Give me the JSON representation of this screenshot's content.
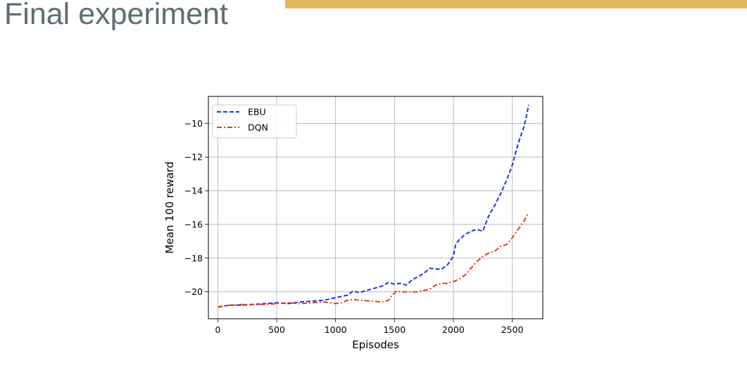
{
  "slide": {
    "title": "Final experiment",
    "accent_color": "#e2b760",
    "title_color": "#5d6d73"
  },
  "chart_data": {
    "type": "line",
    "title": "",
    "xlabel": "Episodes",
    "ylabel": "Mean 100 reward",
    "xlim": [
      -80,
      2760
    ],
    "ylim": [
      -21.6,
      -8.4
    ],
    "xticks": [
      0,
      500,
      1000,
      1500,
      2000,
      2500
    ],
    "yticks": [
      -20,
      -18,
      -16,
      -14,
      -12,
      -10
    ],
    "xtick_labels": [
      "0",
      "500",
      "1000",
      "1500",
      "2000",
      "2500"
    ],
    "ytick_labels": [
      "−20",
      "−18",
      "−16",
      "−14",
      "−12",
      "−10"
    ],
    "grid": true,
    "legend_position": "upper-left",
    "series": [
      {
        "name": "EBU",
        "color": "#1f35d9",
        "style": "dashed",
        "x": [
          0,
          100,
          200,
          300,
          400,
          500,
          600,
          700,
          800,
          900,
          1000,
          1100,
          1150,
          1200,
          1300,
          1400,
          1450,
          1500,
          1550,
          1600,
          1650,
          1700,
          1750,
          1800,
          1850,
          1900,
          1950,
          2000,
          2020,
          2050,
          2100,
          2150,
          2200,
          2250,
          2300,
          2350,
          2400,
          2450,
          2500,
          2550,
          2600,
          2620,
          2640
        ],
        "y": [
          -20.9,
          -20.8,
          -20.8,
          -20.75,
          -20.7,
          -20.65,
          -20.7,
          -20.6,
          -20.55,
          -20.5,
          -20.35,
          -20.2,
          -19.95,
          -20.05,
          -19.85,
          -19.65,
          -19.45,
          -19.55,
          -19.5,
          -19.6,
          -19.3,
          -19.1,
          -18.9,
          -18.6,
          -18.65,
          -18.65,
          -18.4,
          -17.9,
          -17.2,
          -16.9,
          -16.6,
          -16.4,
          -16.3,
          -16.4,
          -15.5,
          -14.9,
          -14.2,
          -13.4,
          -12.5,
          -11.2,
          -10.2,
          -9.6,
          -8.9
        ]
      },
      {
        "name": "DQN",
        "color": "#d9431a",
        "style": "dashdot",
        "x": [
          0,
          100,
          200,
          300,
          400,
          500,
          600,
          700,
          800,
          900,
          1000,
          1050,
          1100,
          1150,
          1200,
          1300,
          1400,
          1450,
          1480,
          1520,
          1550,
          1600,
          1700,
          1800,
          1850,
          1900,
          1950,
          2000,
          2050,
          2100,
          2150,
          2200,
          2250,
          2300,
          2350,
          2400,
          2450,
          2500,
          2550,
          2600,
          2640
        ],
        "y": [
          -20.9,
          -20.8,
          -20.75,
          -20.75,
          -20.75,
          -20.7,
          -20.65,
          -20.7,
          -20.65,
          -20.6,
          -20.7,
          -20.65,
          -20.5,
          -20.45,
          -20.5,
          -20.55,
          -20.6,
          -20.5,
          -20.2,
          -19.95,
          -20.0,
          -20.0,
          -20.0,
          -19.85,
          -19.6,
          -19.5,
          -19.5,
          -19.4,
          -19.25,
          -19.0,
          -18.6,
          -18.2,
          -17.9,
          -17.7,
          -17.6,
          -17.3,
          -17.2,
          -16.8,
          -16.3,
          -15.8,
          -15.3
        ]
      }
    ]
  }
}
